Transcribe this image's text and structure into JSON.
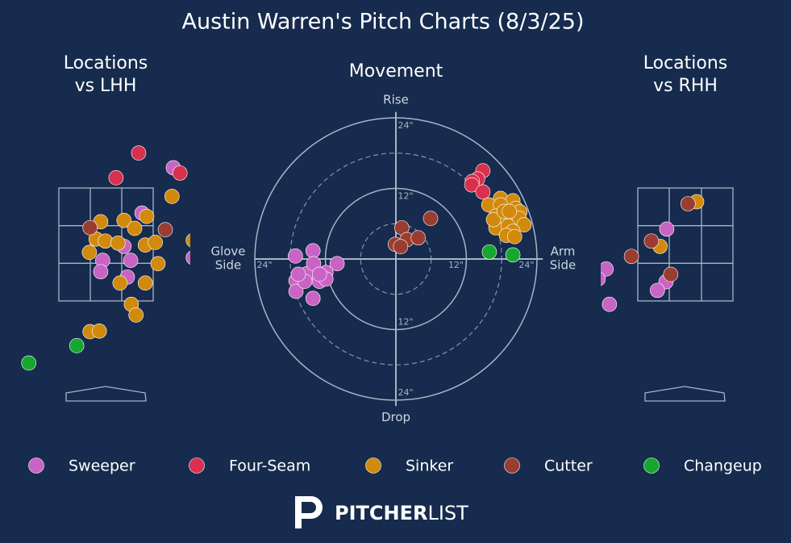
{
  "title": "Austin Warren's Pitch Charts (8/3/25)",
  "logo": {
    "bold": "PITCHER",
    "light": "LIST"
  },
  "chart_data": [
    {
      "type": "scatter",
      "title": [
        "Locations",
        "vs LHH"
      ],
      "xlim": [
        -1.5,
        1.25
      ],
      "ylim": [
        0,
        4
      ],
      "series": [
        {
          "name": "Sweeper",
          "color": "#c963c4",
          "x": [
            1.01,
            0.54,
            0.27,
            -0.05,
            -0.08,
            0.37,
            0.32,
            1.31
          ],
          "y": [
            3.5,
            2.82,
            2.32,
            2.11,
            1.94,
            2.11,
            1.86,
            2.15
          ]
        },
        {
          "name": "Four-Seam",
          "color": "#d8304e",
          "x": [
            0.49,
            0.15,
            1.11
          ],
          "y": [
            3.72,
            3.35,
            3.42
          ]
        },
        {
          "name": "Sinker",
          "color": "#d18a0c",
          "x": [
            0.99,
            -0.08,
            0.27,
            0.43,
            0.61,
            -0.15,
            -0.01,
            0.18,
            0.59,
            0.74,
            -0.25,
            0.78,
            0.21,
            0.59,
            0.38,
            0.45,
            -0.24,
            -0.1,
            1.31
          ],
          "y": [
            3.07,
            2.69,
            2.71,
            2.59,
            2.77,
            2.43,
            2.4,
            2.37,
            2.34,
            2.38,
            2.23,
            2.06,
            1.77,
            1.77,
            1.45,
            1.29,
            1.04,
            1.05,
            2.41
          ]
        },
        {
          "name": "Cutter",
          "color": "#9a3d30",
          "x": [
            -0.24,
            0.89
          ],
          "y": [
            2.6,
            2.57
          ]
        },
        {
          "name": "Changeup",
          "color": "#17a62e",
          "x": [
            -0.44,
            -1.16
          ],
          "y": [
            0.83,
            0.57
          ]
        }
      ]
    },
    {
      "type": "movement",
      "title": [
        "Movement"
      ],
      "xlim": [
        -25,
        25
      ],
      "ylim": [
        -25,
        25
      ],
      "rings": [
        {
          "value": 12,
          "label": "12\""
        },
        {
          "value": 24,
          "label": "24\""
        }
      ],
      "minor_rings": [
        6,
        18
      ],
      "axis_labels": {
        "top": "Rise",
        "bottom": "Drop",
        "left": [
          "Glove",
          "Side"
        ],
        "right": [
          "Arm",
          "Side"
        ]
      },
      "series": [
        {
          "name": "Sweeper",
          "color": "#c963c4",
          "x": [
            -17.1,
            -14.1,
            -10.0,
            -17.0,
            -17.0,
            -14.1,
            -15.1,
            -14.0,
            -11.9,
            -13.0,
            -11.9,
            -15.5,
            -16.6,
            -13.0
          ],
          "y": [
            0.5,
            1.4,
            -0.8,
            -3.7,
            -5.5,
            -6.7,
            -2.5,
            -0.8,
            -2.3,
            -3.8,
            -3.4,
            -3.8,
            -2.6,
            -2.6
          ]
        },
        {
          "name": "Four-Seam",
          "color": "#d8304e",
          "x": [
            14.8,
            13.9,
            13.0,
            12.9,
            14.8
          ],
          "y": [
            15.0,
            13.6,
            13.2,
            12.6,
            11.4
          ]
        },
        {
          "name": "Sinker",
          "color": "#d18a0c",
          "x": [
            17.8,
            19.9,
            15.8,
            17.8,
            20.4,
            21.1,
            17.0,
            20.0,
            17.7,
            21.0,
            21.8,
            17.0,
            19.1,
            19.9,
            18.8,
            20.2,
            16.6,
            18.4,
            19.3
          ],
          "y": [
            10.3,
            9.9,
            9.2,
            9.2,
            8.6,
            8.0,
            7.3,
            7.0,
            6.3,
            6.9,
            5.8,
            5.3,
            5.6,
            4.7,
            4.0,
            3.8,
            6.7,
            8.1,
            8.1
          ]
        },
        {
          "name": "Cutter",
          "color": "#9a3d30",
          "x": [
            1.0,
            5.9,
            -0.1,
            1.9,
            3.8,
            0.8
          ],
          "y": [
            5.3,
            6.9,
            2.5,
            3.3,
            3.6,
            2.1
          ]
        },
        {
          "name": "Changeup",
          "color": "#17a62e",
          "x": [
            15.9,
            19.9
          ],
          "y": [
            1.2,
            0.7
          ]
        }
      ]
    },
    {
      "type": "scatter",
      "title": [
        "Locations",
        "vs RHH"
      ],
      "xlim": [
        -1.25,
        1.5
      ],
      "ylim": [
        0,
        4
      ],
      "series": [
        {
          "name": "Sweeper",
          "color": "#c963c4",
          "x": [
            -0.28,
            -1.19,
            -1.31,
            -0.29,
            -0.42,
            -1.14
          ],
          "y": [
            2.58,
            1.98,
            1.83,
            1.79,
            1.66,
            1.45
          ]
        },
        {
          "name": "Four-Seam",
          "color": "#d8304e",
          "x": [],
          "y": []
        },
        {
          "name": "Sinker",
          "color": "#d18a0c",
          "x": [
            0.17,
            -0.38
          ],
          "y": [
            2.99,
            2.32
          ]
        },
        {
          "name": "Cutter",
          "color": "#9a3d30",
          "x": [
            0.04,
            -0.51,
            -0.81,
            -0.22
          ],
          "y": [
            2.96,
            2.4,
            2.17,
            1.9
          ]
        },
        {
          "name": "Changeup",
          "color": "#17a62e",
          "x": [],
          "y": []
        }
      ]
    }
  ]
}
